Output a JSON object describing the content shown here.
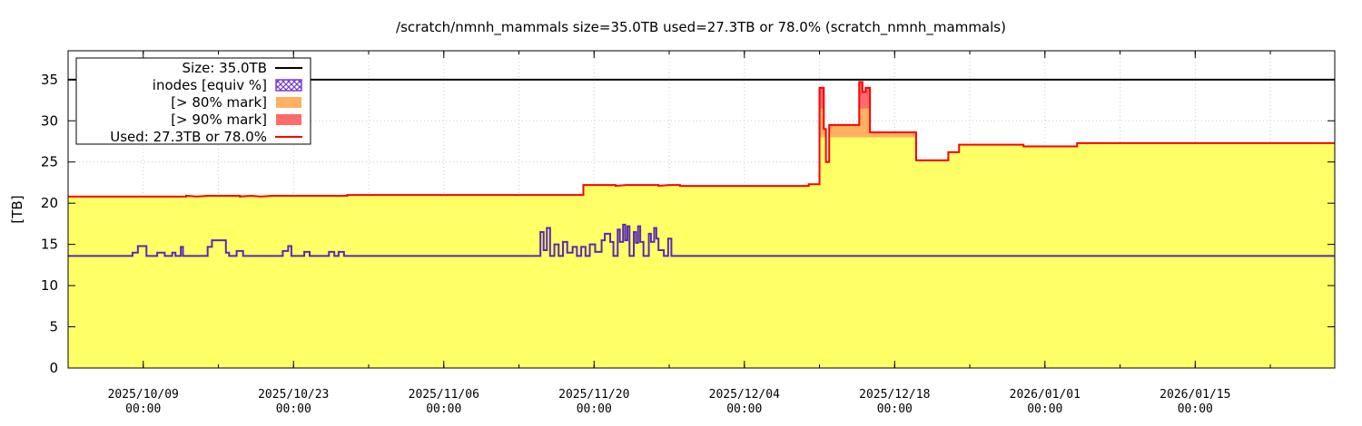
{
  "chart_data": {
    "type": "area",
    "title": "/scratch/nmnh_mammals size=35.0TB used=27.3TB or 78.0% (scratch_nmnh_mammals)",
    "ylabel": "[TB]",
    "xlabel": "",
    "ylim": [
      0,
      38.5
    ],
    "xlim": [
      "2025-10-02",
      "2026-01-28"
    ],
    "yticks": [
      0,
      5,
      10,
      15,
      20,
      25,
      30,
      35
    ],
    "xticks": [
      {
        "date": "2025-10-09",
        "label1": "2025/10/09",
        "label2": "00:00"
      },
      {
        "date": "2025-10-23",
        "label1": "2025/10/23",
        "label2": "00:00"
      },
      {
        "date": "2025-11-06",
        "label1": "2025/11/06",
        "label2": "00:00"
      },
      {
        "date": "2025-11-20",
        "label1": "2025/11/20",
        "label2": "00:00"
      },
      {
        "date": "2025-12-04",
        "label1": "2025/12/04",
        "label2": "00:00"
      },
      {
        "date": "2025-12-18",
        "label1": "2025/12/18",
        "label2": "00:00"
      },
      {
        "date": "2026-01-01",
        "label1": "2026/01/01",
        "label2": "00:00"
      },
      {
        "date": "2026-01-15",
        "label1": "2026/01/15",
        "label2": "00:00"
      }
    ],
    "grid": true,
    "legend_position": "top-left",
    "size_tb": 35.0,
    "legend": [
      {
        "label": "Size: 35.0TB",
        "kind": "line",
        "color": "#000000"
      },
      {
        "label": "inodes [equiv %]",
        "kind": "hatch",
        "color": "#7a3fd0"
      },
      {
        "label": "[> 80% mark]",
        "kind": "box",
        "color": "#ffb060"
      },
      {
        "label": "[> 90% mark]",
        "kind": "box",
        "color": "#ff6a6a"
      },
      {
        "label": "Used: 27.3TB or 78.0%",
        "kind": "line",
        "color": "#ff0000"
      }
    ],
    "colors": {
      "fill": "#ffff66",
      "used_line": "#ff0000",
      "size_line": "#000000",
      "inodes_line": "#5a2ab0",
      "over80": "#ffb060",
      "over90": "#ff6a6a"
    },
    "series": [
      {
        "name": "Used: 27.3TB or 78.0%",
        "points": [
          [
            "2025-10-02",
            20.8
          ],
          [
            "2025-10-13",
            20.8
          ],
          [
            "2025-10-13",
            20.9
          ],
          [
            "2025-10-14",
            20.8
          ],
          [
            "2025-10-15",
            20.9
          ],
          [
            "2025-10-18",
            20.9
          ],
          [
            "2025-10-18",
            20.8
          ],
          [
            "2025-10-19",
            20.9
          ],
          [
            "2025-10-20",
            20.8
          ],
          [
            "2025-10-21",
            20.9
          ],
          [
            "2025-10-28",
            20.9
          ],
          [
            "2025-10-28",
            21.0
          ],
          [
            "2025-11-19",
            21.0
          ],
          [
            "2025-11-19",
            22.2
          ],
          [
            "2025-11-22",
            22.2
          ],
          [
            "2025-11-22",
            22.1
          ],
          [
            "2025-11-23",
            22.2
          ],
          [
            "2025-11-26",
            22.2
          ],
          [
            "2025-11-26",
            22.1
          ],
          [
            "2025-11-27",
            22.2
          ],
          [
            "2025-11-28",
            22.2
          ],
          [
            "2025-11-28",
            22.1
          ],
          [
            "2025-12-10",
            22.1
          ],
          [
            "2025-12-10",
            22.3
          ],
          [
            "2025-12-11",
            22.3
          ],
          [
            "2025-12-11",
            34.0
          ],
          [
            "2025-12-11.4",
            34.0
          ],
          [
            "2025-12-11.4",
            29.0
          ],
          [
            "2025-12-11.6",
            29.0
          ],
          [
            "2025-12-11.6",
            25.0
          ],
          [
            "2025-12-11.9",
            25.0
          ],
          [
            "2025-12-11.9",
            29.5
          ],
          [
            "2025-12-14.7",
            29.5
          ],
          [
            "2025-12-14.7",
            34.7
          ],
          [
            "2025-12-15.0",
            34.7
          ],
          [
            "2025-12-15.0",
            33.5
          ],
          [
            "2025-12-15.3",
            33.5
          ],
          [
            "2025-12-15.3",
            34.0
          ],
          [
            "2025-12-15.7",
            34.0
          ],
          [
            "2025-12-15.7",
            28.6
          ],
          [
            "2025-12-20",
            28.6
          ],
          [
            "2025-12-20",
            25.2
          ],
          [
            "2025-12-23",
            25.2
          ],
          [
            "2025-12-23",
            26.2
          ],
          [
            "2025-12-24",
            26.2
          ],
          [
            "2025-12-24",
            27.1
          ],
          [
            "2025-12-30",
            27.1
          ],
          [
            "2025-12-30",
            26.9
          ],
          [
            "2026-01-04",
            26.9
          ],
          [
            "2026-01-04",
            27.3
          ],
          [
            "2026-01-28",
            27.3
          ]
        ]
      },
      {
        "name": "inodes [equiv %]",
        "points": [
          [
            "2025-10-02",
            13.6
          ],
          [
            "2025-10-08",
            13.6
          ],
          [
            "2025-10-08",
            14.0
          ],
          [
            "2025-10-08.5",
            14.0
          ],
          [
            "2025-10-08.5",
            14.8
          ],
          [
            "2025-10-09.3",
            14.8
          ],
          [
            "2025-10-09.3",
            13.6
          ],
          [
            "2025-10-10.3",
            13.6
          ],
          [
            "2025-10-10.3",
            14.0
          ],
          [
            "2025-10-11",
            14.0
          ],
          [
            "2025-10-11",
            13.6
          ],
          [
            "2025-10-11.7",
            13.6
          ],
          [
            "2025-10-11.7",
            14.0
          ],
          [
            "2025-10-12",
            14.0
          ],
          [
            "2025-10-12",
            13.6
          ],
          [
            "2025-10-12.5",
            13.6
          ],
          [
            "2025-10-12.5",
            14.7
          ],
          [
            "2025-10-12.7",
            14.7
          ],
          [
            "2025-10-12.7",
            13.6
          ],
          [
            "2025-10-15",
            13.6
          ],
          [
            "2025-10-15",
            14.7
          ],
          [
            "2025-10-15.4",
            14.7
          ],
          [
            "2025-10-15.4",
            15.5
          ],
          [
            "2025-10-16.7",
            15.5
          ],
          [
            "2025-10-16.7",
            14.0
          ],
          [
            "2025-10-17",
            14.0
          ],
          [
            "2025-10-17",
            13.6
          ],
          [
            "2025-10-17.7",
            13.6
          ],
          [
            "2025-10-17.7",
            14.2
          ],
          [
            "2025-10-18.3",
            14.2
          ],
          [
            "2025-10-18.3",
            13.6
          ],
          [
            "2025-10-22",
            13.6
          ],
          [
            "2025-10-22",
            14.2
          ],
          [
            "2025-10-22.5",
            14.2
          ],
          [
            "2025-10-22.5",
            14.8
          ],
          [
            "2025-10-22.8",
            14.8
          ],
          [
            "2025-10-22.8",
            13.6
          ],
          [
            "2025-10-24",
            13.6
          ],
          [
            "2025-10-24",
            14.1
          ],
          [
            "2025-10-24.5",
            14.1
          ],
          [
            "2025-10-24.5",
            13.6
          ],
          [
            "2025-10-26.3",
            13.6
          ],
          [
            "2025-10-26.3",
            14.1
          ],
          [
            "2025-10-26.8",
            14.1
          ],
          [
            "2025-10-26.8",
            13.6
          ],
          [
            "2025-10-27.2",
            13.6
          ],
          [
            "2025-10-27.2",
            14.1
          ],
          [
            "2025-10-27.7",
            14.1
          ],
          [
            "2025-10-27.7",
            13.6
          ],
          [
            "2025-11-15",
            13.6
          ],
          [
            "2025-11-15",
            16.5
          ],
          [
            "2025-11-15.3",
            16.5
          ],
          [
            "2025-11-15.3",
            14.3
          ],
          [
            "2025-11-15.6",
            14.3
          ],
          [
            "2025-11-15.6",
            17.0
          ],
          [
            "2025-11-15.9",
            17.0
          ],
          [
            "2025-11-15.9",
            13.6
          ],
          [
            "2025-11-16.3",
            13.6
          ],
          [
            "2025-11-16.3",
            15.0
          ],
          [
            "2025-11-16.7",
            15.0
          ],
          [
            "2025-11-16.7",
            13.6
          ],
          [
            "2025-11-17.1",
            13.6
          ],
          [
            "2025-11-17.1",
            15.3
          ],
          [
            "2025-11-17.5",
            15.3
          ],
          [
            "2025-11-17.5",
            14.0
          ],
          [
            "2025-11-18",
            14.0
          ],
          [
            "2025-11-18",
            14.7
          ],
          [
            "2025-11-18.4",
            14.7
          ],
          [
            "2025-11-18.4",
            13.6
          ],
          [
            "2025-11-18.8",
            13.6
          ],
          [
            "2025-11-18.8",
            14.7
          ],
          [
            "2025-11-19.2",
            14.7
          ],
          [
            "2025-11-19.2",
            13.6
          ],
          [
            "2025-11-19.6",
            13.6
          ],
          [
            "2025-11-19.6",
            15.0
          ],
          [
            "2025-11-20.1",
            15.0
          ],
          [
            "2025-11-20.1",
            14.1
          ],
          [
            "2025-11-20.7",
            14.1
          ],
          [
            "2025-11-20.7",
            15.5
          ],
          [
            "2025-11-21",
            15.5
          ],
          [
            "2025-11-21",
            16.3
          ],
          [
            "2025-11-21.5",
            16.3
          ],
          [
            "2025-11-21.5",
            15.3
          ],
          [
            "2025-11-21.8",
            15.3
          ],
          [
            "2025-11-21.8",
            13.6
          ],
          [
            "2025-11-22.2",
            13.6
          ],
          [
            "2025-11-22.2",
            16.8
          ],
          [
            "2025-11-22.4",
            16.8
          ],
          [
            "2025-11-22.4",
            15.3
          ],
          [
            "2025-11-22.7",
            15.3
          ],
          [
            "2025-11-22.7",
            17.4
          ],
          [
            "2025-11-22.9",
            17.4
          ],
          [
            "2025-11-22.9",
            15.5
          ],
          [
            "2025-11-23.1",
            15.5
          ],
          [
            "2025-11-23.1",
            17.2
          ],
          [
            "2025-11-23.3",
            17.2
          ],
          [
            "2025-11-23.3",
            13.6
          ],
          [
            "2025-11-23.7",
            13.6
          ],
          [
            "2025-11-23.7",
            16.5
          ],
          [
            "2025-11-23.9",
            16.5
          ],
          [
            "2025-11-23.9",
            15.2
          ],
          [
            "2025-11-24.1",
            15.2
          ],
          [
            "2025-11-24.1",
            17.2
          ],
          [
            "2025-11-24.3",
            17.2
          ],
          [
            "2025-11-24.3",
            15.3
          ],
          [
            "2025-11-24.6",
            15.3
          ],
          [
            "2025-11-24.6",
            13.6
          ],
          [
            "2025-11-25.1",
            13.6
          ],
          [
            "2025-11-25.1",
            16.3
          ],
          [
            "2025-11-25.3",
            16.3
          ],
          [
            "2025-11-25.3",
            15.3
          ],
          [
            "2025-11-25.6",
            15.3
          ],
          [
            "2025-11-25.6",
            17.0
          ],
          [
            "2025-11-25.8",
            17.0
          ],
          [
            "2025-11-25.8",
            15.7
          ],
          [
            "2025-11-26",
            15.7
          ],
          [
            "2025-11-26",
            14.3
          ],
          [
            "2025-11-26.5",
            14.3
          ],
          [
            "2025-11-26.5",
            13.6
          ],
          [
            "2025-11-26.9",
            13.6
          ],
          [
            "2025-11-26.9",
            15.7
          ],
          [
            "2025-11-27.2",
            15.7
          ],
          [
            "2025-11-27.2",
            13.6
          ],
          [
            "2026-01-28",
            13.6
          ]
        ]
      }
    ]
  }
}
